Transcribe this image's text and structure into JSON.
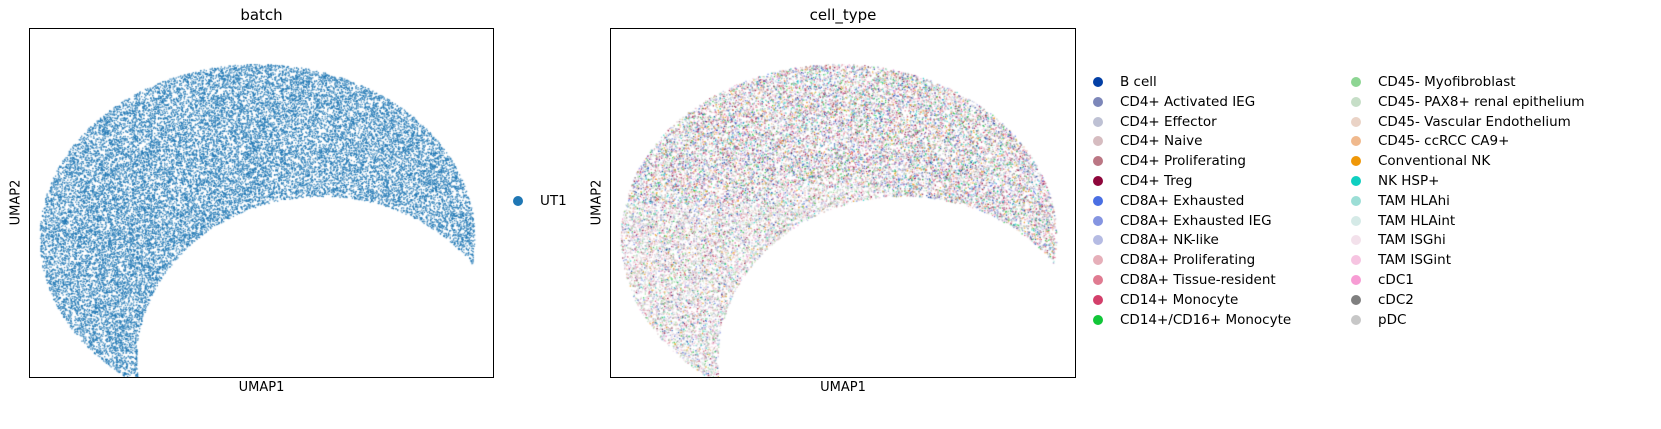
{
  "chart_data": [
    {
      "type": "scatter",
      "title": "batch",
      "xlabel": "UMAP1",
      "ylabel": "UMAP2",
      "grid": false,
      "legend_position": "right",
      "categories": [
        {
          "name": "UT1",
          "color": "#1f77b4"
        }
      ]
    },
    {
      "type": "scatter",
      "title": "cell_type",
      "xlabel": "UMAP1",
      "ylabel": "UMAP2",
      "grid": false,
      "legend_position": "right",
      "categories": [
        {
          "name": "B cell",
          "color": "#023fa5"
        },
        {
          "name": "CD4+ Activated IEG",
          "color": "#7d87b9"
        },
        {
          "name": "CD4+ Effector",
          "color": "#bec1d4"
        },
        {
          "name": "CD4+ Naive",
          "color": "#d6bcc0"
        },
        {
          "name": "CD4+ Proliferating",
          "color": "#bb7784"
        },
        {
          "name": "CD4+ Treg",
          "color": "#8e063b"
        },
        {
          "name": "CD8A+ Exhausted",
          "color": "#4a6fe3"
        },
        {
          "name": "CD8A+ Exhausted IEG",
          "color": "#8595e1"
        },
        {
          "name": "CD8A+ NK-like",
          "color": "#b5bbe3"
        },
        {
          "name": "CD8A+ Proliferating",
          "color": "#e6afb9"
        },
        {
          "name": "CD8A+ Tissue-resident",
          "color": "#e07b91"
        },
        {
          "name": "CD14+ Monocyte",
          "color": "#d33f6a"
        },
        {
          "name": "CD14+/CD16+ Monocyte",
          "color": "#11c638"
        },
        {
          "name": "CD45- Myofibroblast",
          "color": "#8dd593"
        },
        {
          "name": "CD45- PAX8+ renal epithelium",
          "color": "#c6dec7"
        },
        {
          "name": "CD45- Vascular Endothelium",
          "color": "#ead3c6"
        },
        {
          "name": "CD45- ccRCC CA9+",
          "color": "#f0b98d"
        },
        {
          "name": "Conventional NK",
          "color": "#ef9708"
        },
        {
          "name": "NK HSP+",
          "color": "#0fcfc0"
        },
        {
          "name": "TAM HLAhi",
          "color": "#9cded6"
        },
        {
          "name": "TAM HLAint",
          "color": "#d5eae7"
        },
        {
          "name": "TAM ISGhi",
          "color": "#f3e1eb"
        },
        {
          "name": "TAM ISGint",
          "color": "#f6c4e1"
        },
        {
          "name": "cDC1",
          "color": "#f79cd4"
        },
        {
          "name": "cDC2",
          "color": "#7f7f7f"
        },
        {
          "name": "pDC",
          "color": "#c7c7c7"
        }
      ]
    }
  ]
}
